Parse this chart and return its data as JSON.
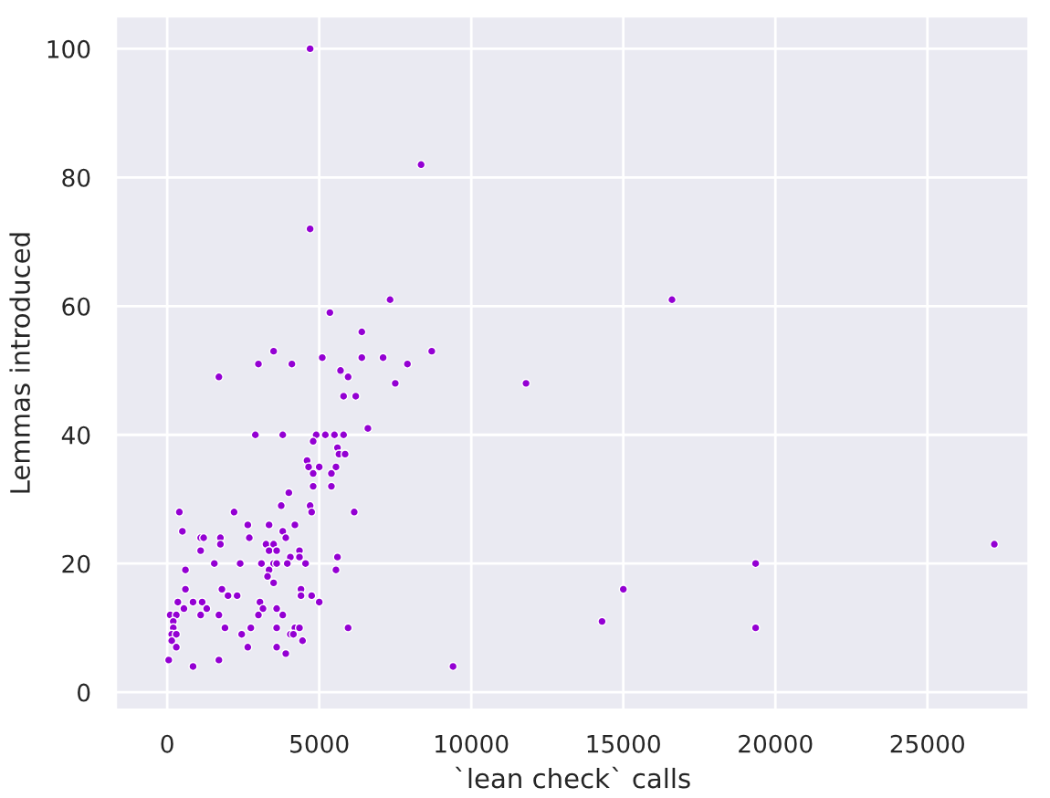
{
  "chart_data": {
    "type": "scatter",
    "xlabel": "`lean check` calls",
    "ylabel": "Lemmas introduced",
    "xlim": [
      -1700,
      28340
    ],
    "ylim": [
      -2.8,
      105.1
    ],
    "xticks": [
      0,
      5000,
      10000,
      15000,
      20000,
      25000
    ],
    "yticks": [
      0,
      20,
      40,
      60,
      80,
      100
    ],
    "grid": true,
    "marker": "circle",
    "series": [
      {
        "color": "#9400d3",
        "x": [
          4700,
          8350,
          4700,
          7330,
          5350,
          6400,
          3500,
          3000,
          4100,
          5100,
          6400,
          7100,
          8700,
          7900,
          1700,
          5700,
          5950,
          7500,
          5800,
          6200,
          6600,
          2900,
          3800,
          4900,
          5200,
          5500,
          5800,
          4800,
          5600,
          5650,
          5850,
          4600,
          4650,
          5000,
          5550,
          4800,
          5400,
          4000,
          4800,
          5400,
          3750,
          4700,
          4750,
          6150,
          400,
          2200,
          500,
          2650,
          3350,
          4200,
          2700,
          1100,
          1200,
          1750,
          1750,
          3800,
          3900,
          1100,
          3250,
          3500,
          3350,
          3600,
          4350,
          4050,
          4350,
          5600,
          5550,
          600,
          1550,
          2400,
          3100,
          3500,
          3600,
          3950,
          4550,
          3350,
          3300,
          3500,
          600,
          1800,
          2000,
          2300,
          4400,
          4400,
          4750,
          5000,
          350,
          850,
          1150,
          3050,
          550,
          1300,
          3150,
          3600,
          100,
          300,
          1100,
          1700,
          3000,
          3800,
          200,
          200,
          1900,
          2750,
          3600,
          4200,
          4350,
          5950,
          150,
          300,
          4050,
          4150,
          150,
          2450,
          4450,
          300,
          2650,
          3600,
          3900,
          50,
          1700,
          850,
          9400,
          11800,
          16600,
          14300,
          15000,
          19350,
          19350,
          27200
        ],
        "values": [
          100,
          82,
          72,
          61,
          59,
          56,
          53,
          51,
          51,
          52,
          52,
          52,
          53,
          51,
          49,
          50,
          49,
          48,
          46,
          46,
          41,
          40,
          40,
          40,
          40,
          40,
          40,
          39,
          38,
          37,
          37,
          36,
          35,
          35,
          35,
          34,
          34,
          31,
          32,
          32,
          29,
          29,
          28,
          28,
          28,
          28,
          25,
          26,
          26,
          26,
          24,
          24,
          24,
          24,
          23,
          25,
          24,
          22,
          23,
          23,
          22,
          22,
          22,
          21,
          21,
          21,
          19,
          19,
          20,
          20,
          20,
          20,
          20,
          20,
          20,
          19,
          18,
          17,
          16,
          16,
          15,
          15,
          16,
          15,
          15,
          14,
          14,
          14,
          14,
          14,
          13,
          13,
          13,
          13,
          12,
          12,
          12,
          12,
          12,
          12,
          11,
          10,
          10,
          10,
          10,
          10,
          10,
          10,
          9,
          9,
          9,
          9,
          8,
          9,
          8,
          7,
          7,
          7,
          6,
          5,
          5,
          4,
          4,
          48,
          61,
          11,
          16,
          20,
          10,
          23
        ]
      }
    ]
  }
}
